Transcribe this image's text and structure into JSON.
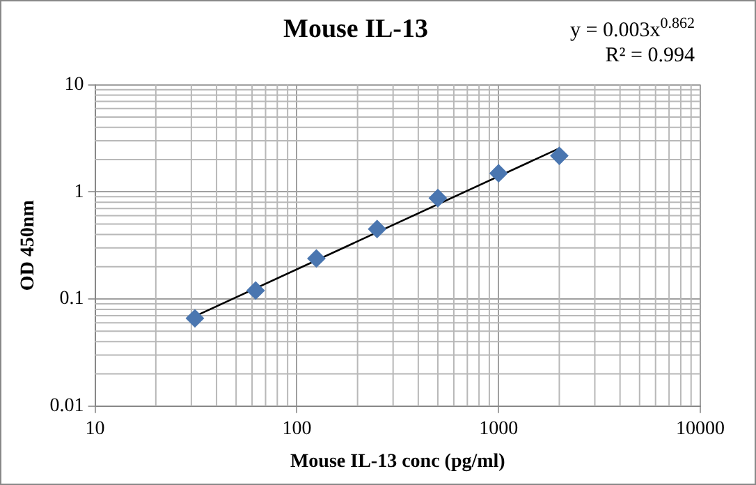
{
  "chart_data": {
    "type": "scatter",
    "title": "Mouse IL-13",
    "xlabel": "Mouse IL-13 conc (pg/ml)",
    "ylabel": "OD 450nm",
    "x": [
      31.25,
      62.5,
      125,
      250,
      500,
      1000,
      2000
    ],
    "series": [
      {
        "color": "#4a76b0",
        "values": [
          0.066,
          0.12,
          0.239,
          0.45,
          0.875,
          1.49,
          2.17
        ],
        "marker": "diamond"
      },
      {
        "type": "line",
        "color": "#000000",
        "x": [
          31.25,
          2000
        ],
        "values": [
          0.069,
          2.55
        ],
        "marker": "none"
      }
    ],
    "log": "xy",
    "xlim": [
      10,
      10000
    ],
    "xticks": [
      10,
      100,
      1000,
      10000
    ],
    "ylim": [
      0.01,
      10
    ],
    "yticks": [
      0.01,
      0.1,
      1,
      10
    ],
    "grid": true,
    "legend": false,
    "annotations": [
      "y = 0.003x$^{0.862}$",
      "R² = 0.994"
    ]
  }
}
